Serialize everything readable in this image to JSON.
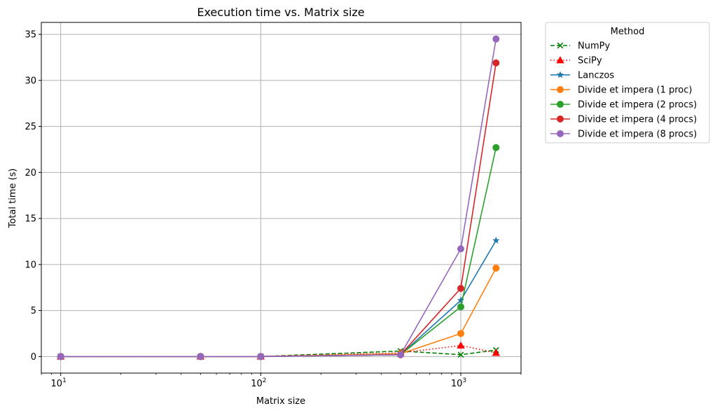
{
  "chart_data": {
    "type": "line",
    "title": "Execution time vs. Matrix size",
    "xlabel": "Matrix size",
    "ylabel": "Total time (s)",
    "xscale": "log",
    "xlim": [
      8,
      2000
    ],
    "ylim": [
      -1.8,
      36.3
    ],
    "x_ticks": [
      10,
      100,
      1000
    ],
    "x_tick_labels": [
      {
        "base": "10",
        "exp": "1"
      },
      {
        "base": "10",
        "exp": "2"
      },
      {
        "base": "10",
        "exp": "3"
      }
    ],
    "y_ticks": [
      0,
      5,
      10,
      15,
      20,
      25,
      30,
      35
    ],
    "y_tick_labels": [
      "0",
      "5",
      "10",
      "15",
      "20",
      "25",
      "30",
      "35"
    ],
    "grid": true,
    "legend": {
      "title": "Method",
      "placement": "outside-top-right"
    },
    "x": [
      10,
      50,
      100,
      500,
      1000,
      1500
    ],
    "series": [
      {
        "name": "NumPy",
        "color": "#008000",
        "dash": "dashed",
        "marker": "x",
        "values": [
          0,
          0,
          0,
          0.6,
          0.2,
          0.7
        ]
      },
      {
        "name": "SciPy",
        "color": "#ff0000",
        "dash": "dotted",
        "marker": "triangle",
        "values": [
          0,
          0,
          0,
          0.4,
          1.2,
          0.4
        ]
      },
      {
        "name": "Lanczos",
        "color": "#1f77b4",
        "dash": "solid",
        "marker": "star",
        "values": [
          0,
          0,
          0,
          0.2,
          6.1,
          12.6
        ]
      },
      {
        "name": "Divide et impera (1 proc)",
        "color": "#ff7f0e",
        "dash": "solid",
        "marker": "circle",
        "values": [
          0,
          0,
          0,
          0.3,
          2.5,
          9.6
        ]
      },
      {
        "name": "Divide et impera (2 procs)",
        "color": "#2ca02c",
        "dash": "solid",
        "marker": "circle",
        "values": [
          0,
          0,
          0,
          0.2,
          5.4,
          22.7
        ]
      },
      {
        "name": "Divide et impera (4 procs)",
        "color": "#d62728",
        "dash": "solid",
        "marker": "circle",
        "values": [
          0,
          0,
          0,
          0.2,
          7.4,
          31.9
        ]
      },
      {
        "name": "Divide et impera (8 procs)",
        "color": "#9467bd",
        "dash": "solid",
        "marker": "circle",
        "values": [
          0,
          0,
          0,
          0.2,
          11.7,
          34.5
        ]
      }
    ]
  }
}
